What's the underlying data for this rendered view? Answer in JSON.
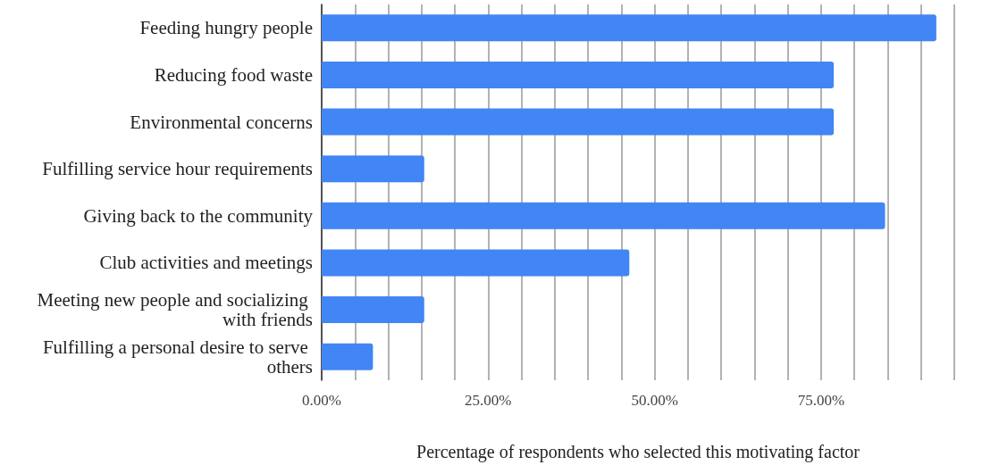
{
  "chart_data": {
    "type": "bar",
    "orientation": "horizontal",
    "xlabel": "Percentage of respondents who selected this motivating factor",
    "categories": [
      "Feeding hungry people",
      "Reducing food waste",
      "Environmental concerns",
      "Fulfilling service hour requirements",
      "Giving back to the community",
      "Club activities and meetings",
      "Meeting new people and socializing with friends",
      "Fulfilling a personal desire to serve others"
    ],
    "values": [
      92.3,
      76.9,
      76.9,
      15.4,
      84.6,
      46.2,
      15.4,
      7.7
    ],
    "color": "#4285f4",
    "xlim": [
      0,
      95
    ],
    "xticks": [
      {
        "value": 0,
        "label": "0.00%"
      },
      {
        "value": 5,
        "label": null
      },
      {
        "value": 10,
        "label": null
      },
      {
        "value": 15,
        "label": null
      },
      {
        "value": 20,
        "label": null
      },
      {
        "value": 25,
        "label": "25.00%"
      },
      {
        "value": 30,
        "label": null
      },
      {
        "value": 35,
        "label": null
      },
      {
        "value": 40,
        "label": null
      },
      {
        "value": 45,
        "label": null
      },
      {
        "value": 50,
        "label": "50.00%"
      },
      {
        "value": 55,
        "label": null
      },
      {
        "value": 60,
        "label": null
      },
      {
        "value": 65,
        "label": null
      },
      {
        "value": 70,
        "label": null
      },
      {
        "value": 75,
        "label": "75.00%"
      },
      {
        "value": 80,
        "label": null
      },
      {
        "value": 85,
        "label": null
      },
      {
        "value": 90,
        "label": null
      },
      {
        "value": 95,
        "label": null
      }
    ],
    "grid": "x"
  }
}
